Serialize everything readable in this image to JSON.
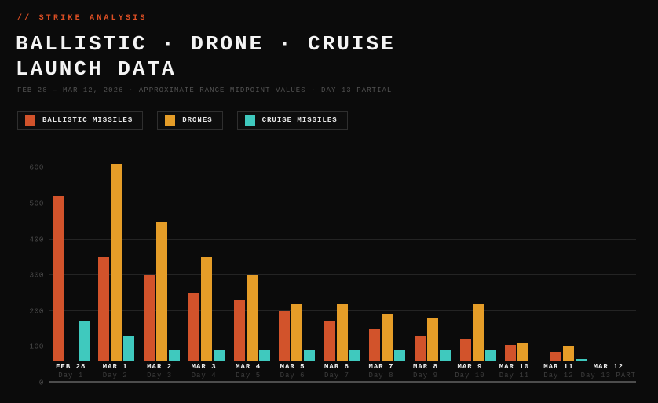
{
  "header": {
    "eyebrow": "// STRIKE ANALYSIS",
    "title_line1": "BALLISTIC · DRONE · CRUISE",
    "title_line2": "LAUNCH DATA",
    "subtitle": "FEB 28 – MAR 12, 2026  ·  APPROXIMATE RANGE MIDPOINT VALUES  ·  DAY 13 PARTIAL"
  },
  "colors": {
    "background": "#0b0b0b",
    "accent_red": "#dd4f24",
    "ballistic": "#d2532b",
    "drone": "#e59d28",
    "cruise": "#3fc9be",
    "gridline": "#242424",
    "axis_line": "#4d4d4d",
    "tick_label": "#4a4a4a",
    "day_label": "#3d3d3d"
  },
  "legend": {
    "items": [
      {
        "label": "BALLISTIC MISSILES",
        "color": "#d2532b"
      },
      {
        "label": "DRONES",
        "color": "#e59d28"
      },
      {
        "label": "CRUISE MISSILES",
        "color": "#3fc9be"
      }
    ]
  },
  "chart_data": {
    "type": "bar",
    "title": "BALLISTIC · DRONE · CRUISE LAUNCH DATA",
    "categories": [
      "FEB 28",
      "MAR 1",
      "MAR 2",
      "MAR 3",
      "MAR 4",
      "MAR 5",
      "MAR 6",
      "MAR 7",
      "MAR 8",
      "MAR 9",
      "MAR 10",
      "MAR 11",
      "MAR 12"
    ],
    "day_labels": [
      "Day 1",
      "Day 2",
      "Day 3",
      "Day 4",
      "Day 5",
      "Day 6",
      "Day 7",
      "Day 8",
      "Day 9",
      "Day 10",
      "Day 11",
      "Day 12",
      "Day 13 PART"
    ],
    "series": [
      {
        "name": "BALLISTIC MISSILES",
        "color": "#d2532b",
        "values": [
          520,
          350,
          300,
          250,
          230,
          200,
          170,
          150,
          130,
          120,
          105,
          85,
          null
        ]
      },
      {
        "name": "DRONES",
        "color": "#e59d28",
        "values": [
          null,
          610,
          450,
          350,
          300,
          220,
          220,
          190,
          180,
          220,
          110,
          100,
          null
        ]
      },
      {
        "name": "CRUISE MISSILES",
        "color": "#3fc9be",
        "values": [
          170,
          130,
          90,
          90,
          90,
          90,
          90,
          90,
          90,
          90,
          null,
          65,
          null
        ]
      }
    ],
    "xlabel": "",
    "ylabel": "",
    "ylim": [
      0,
      640
    ],
    "yticks": [
      0,
      100,
      200,
      300,
      400,
      500,
      600
    ],
    "grid": "horizontal",
    "legend_position": "top-left"
  }
}
